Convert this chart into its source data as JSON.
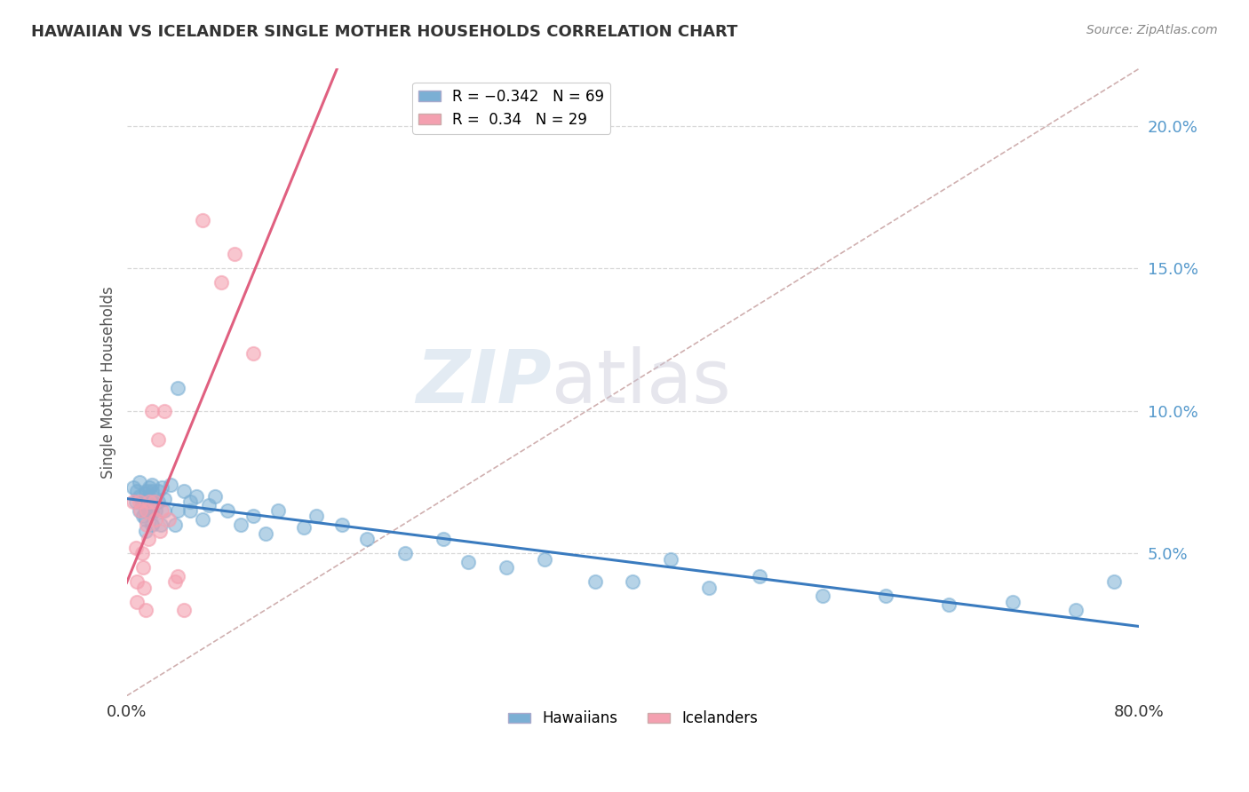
{
  "title": "HAWAIIAN VS ICELANDER SINGLE MOTHER HOUSEHOLDS CORRELATION CHART",
  "source": "Source: ZipAtlas.com",
  "ylabel": "Single Mother Households",
  "watermark_text": "ZIPatlas",
  "hawaiian_R": -0.342,
  "hawaiian_N": 69,
  "icelander_R": 0.34,
  "icelander_N": 29,
  "hawaiian_color": "#7bafd4",
  "icelander_color": "#f4a0b0",
  "hawaiian_line_color": "#3a7bbf",
  "icelander_line_color": "#e06080",
  "ref_line_color": "#d0b0b0",
  "background_color": "#ffffff",
  "grid_color": "#d8d8d8",
  "xlim": [
    0.0,
    0.8
  ],
  "ylim": [
    0.0,
    0.22
  ],
  "yticks": [
    0.05,
    0.1,
    0.15,
    0.2
  ],
  "ytick_labels": [
    "5.0%",
    "10.0%",
    "15.0%",
    "20.0%"
  ],
  "hawaiian_x": [
    0.005,
    0.007,
    0.008,
    0.01,
    0.01,
    0.01,
    0.012,
    0.013,
    0.015,
    0.015,
    0.015,
    0.015,
    0.015,
    0.016,
    0.017,
    0.017,
    0.018,
    0.018,
    0.018,
    0.019,
    0.02,
    0.02,
    0.02,
    0.02,
    0.02,
    0.022,
    0.023,
    0.025,
    0.025,
    0.027,
    0.028,
    0.03,
    0.03,
    0.035,
    0.038,
    0.04,
    0.04,
    0.045,
    0.05,
    0.05,
    0.055,
    0.06,
    0.065,
    0.07,
    0.08,
    0.09,
    0.1,
    0.11,
    0.12,
    0.14,
    0.15,
    0.17,
    0.19,
    0.22,
    0.25,
    0.27,
    0.3,
    0.33,
    0.37,
    0.4,
    0.43,
    0.46,
    0.5,
    0.55,
    0.6,
    0.65,
    0.7,
    0.75,
    0.78
  ],
  "hawaiian_y": [
    0.073,
    0.068,
    0.072,
    0.075,
    0.07,
    0.065,
    0.068,
    0.063,
    0.071,
    0.068,
    0.065,
    0.062,
    0.058,
    0.072,
    0.069,
    0.066,
    0.073,
    0.07,
    0.067,
    0.065,
    0.074,
    0.072,
    0.068,
    0.064,
    0.06,
    0.068,
    0.065,
    0.072,
    0.068,
    0.06,
    0.073,
    0.069,
    0.065,
    0.074,
    0.06,
    0.108,
    0.065,
    0.072,
    0.068,
    0.065,
    0.07,
    0.062,
    0.067,
    0.07,
    0.065,
    0.06,
    0.063,
    0.057,
    0.065,
    0.059,
    0.063,
    0.06,
    0.055,
    0.05,
    0.055,
    0.047,
    0.045,
    0.048,
    0.04,
    0.04,
    0.048,
    0.038,
    0.042,
    0.035,
    0.035,
    0.032,
    0.033,
    0.03,
    0.04
  ],
  "icelander_x": [
    0.005,
    0.007,
    0.008,
    0.008,
    0.01,
    0.011,
    0.012,
    0.013,
    0.014,
    0.015,
    0.016,
    0.016,
    0.017,
    0.018,
    0.02,
    0.022,
    0.023,
    0.025,
    0.026,
    0.028,
    0.03,
    0.033,
    0.038,
    0.04,
    0.045,
    0.06,
    0.075,
    0.085,
    0.1
  ],
  "icelander_y": [
    0.068,
    0.052,
    0.04,
    0.033,
    0.068,
    0.065,
    0.05,
    0.045,
    0.038,
    0.03,
    0.065,
    0.06,
    0.055,
    0.068,
    0.1,
    0.068,
    0.062,
    0.09,
    0.058,
    0.065,
    0.1,
    0.062,
    0.04,
    0.042,
    0.03,
    0.167,
    0.145,
    0.155,
    0.12
  ]
}
